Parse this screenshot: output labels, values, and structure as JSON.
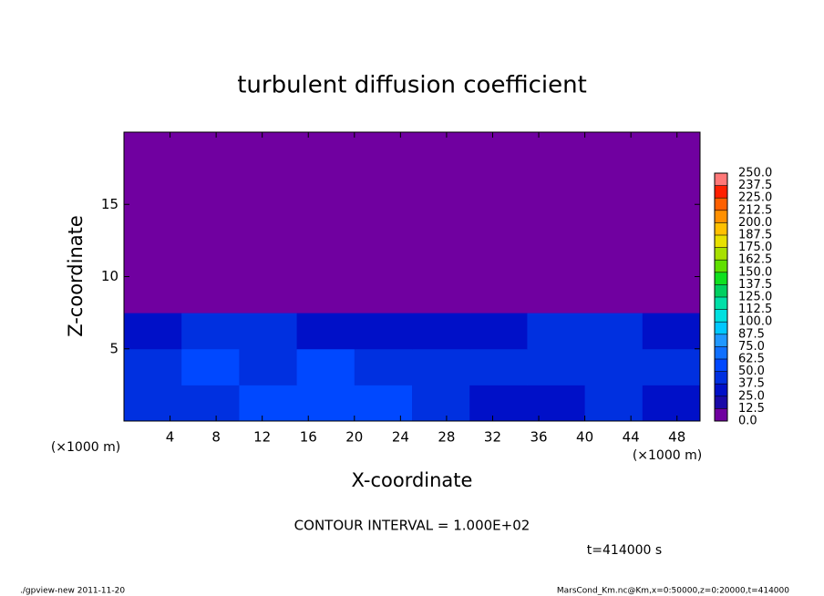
{
  "chart_data": {
    "type": "heatmap",
    "title": "turbulent diffusion coefficient",
    "xlabel": "X-coordinate",
    "ylabel": "Z-coordinate",
    "x_unit": "(×1000 m)",
    "y_unit": "(×1000 m)",
    "xlim": [
      0,
      50
    ],
    "ylim": [
      0,
      20
    ],
    "xticks": [
      4,
      8,
      12,
      16,
      20,
      24,
      28,
      32,
      36,
      40,
      44,
      48
    ],
    "yticks": [
      5,
      10,
      15
    ],
    "x_edges": [
      0,
      5,
      10,
      15,
      20,
      25,
      30,
      35,
      40,
      45,
      50
    ],
    "y_edges": [
      0,
      2.5,
      5,
      7.5,
      10,
      12.5,
      15,
      17.5,
      20
    ],
    "values": [
      [
        40,
        45,
        55,
        50,
        55,
        45,
        35,
        35,
        40,
        35
      ],
      [
        45,
        50,
        45,
        50,
        45,
        40,
        40,
        45,
        45,
        40
      ],
      [
        35,
        45,
        40,
        35,
        30,
        30,
        35,
        40,
        40,
        35
      ],
      [
        0,
        0,
        0,
        0,
        0,
        0,
        0,
        0,
        0,
        0
      ],
      [
        0,
        0,
        0,
        0,
        0,
        0,
        0,
        0,
        0,
        0
      ],
      [
        0,
        0,
        0,
        0,
        0,
        0,
        0,
        0,
        0,
        0
      ],
      [
        0,
        0,
        0,
        0,
        0,
        0,
        0,
        0,
        0,
        0
      ],
      [
        0,
        0,
        0,
        0,
        0,
        0,
        0,
        0,
        0,
        0
      ]
    ],
    "levels": [
      {
        "value": 0,
        "label": "0.0"
      },
      12.5,
      {
        "value": 25,
        "label": "25.0"
      },
      37.5,
      {
        "value": 50,
        "label": "50.0"
      },
      62.5,
      {
        "value": 75,
        "label": "75.0"
      },
      87.5,
      {
        "value": 100,
        "label": "100.0"
      },
      112.5,
      {
        "value": 125,
        "label": "125.0"
      },
      137.5,
      {
        "value": 150,
        "label": "150.0"
      },
      162.5,
      {
        "value": 175,
        "label": "175.0"
      },
      187.5,
      {
        "value": 200,
        "label": "200.0"
      },
      212.5,
      {
        "value": 225,
        "label": "225.0"
      },
      237.5,
      {
        "value": 250,
        "label": "250.0"
      }
    ],
    "colors": [
      "#7000a0",
      "#1a0aa8",
      "#0010c8",
      "#0030e0",
      "#0048ff",
      "#1070ff",
      "#2098ff",
      "#00c8ff",
      "#00e0e0",
      "#00e0a8",
      "#00d060",
      "#10e020",
      "#60e000",
      "#a8e000",
      "#e8e000",
      "#ffc000",
      "#ff9000",
      "#ff6000",
      "#ff2000",
      "#ff7878"
    ],
    "contour_note": "CONTOUR INTERVAL = 1.000E+02",
    "time_label": "t=414000 s",
    "footer_left": "./gpview-new   2011-11-20",
    "footer_right": "MarsCond_Km.nc@Km,x=0:50000,z=0:20000,t=414000"
  }
}
